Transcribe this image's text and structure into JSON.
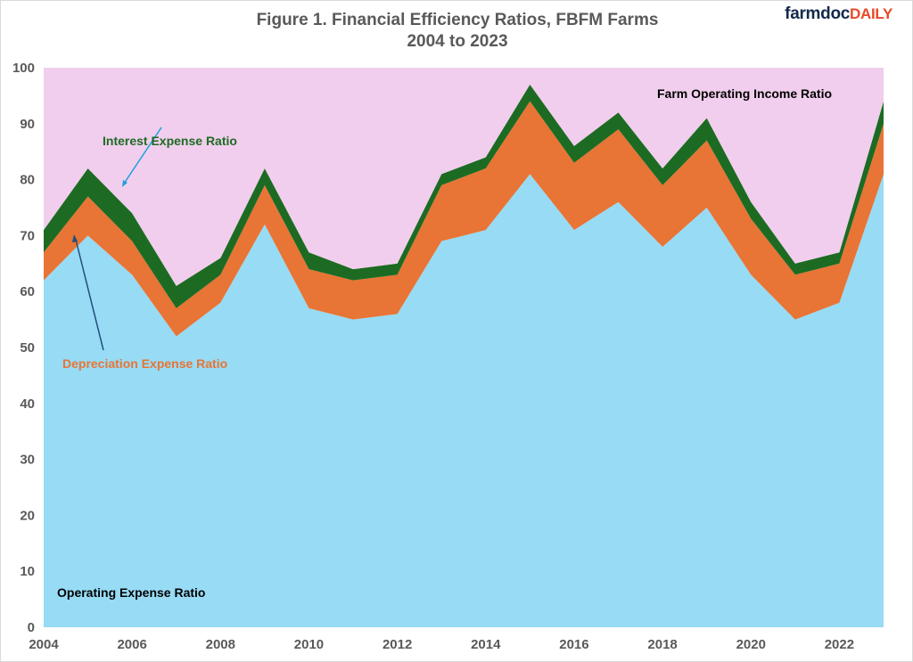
{
  "logo": {
    "text_main": "farmdoc",
    "text_accent": "DAILY"
  },
  "chart_data": {
    "type": "area",
    "stacked": true,
    "title": "Figure 1. Financial Efficiency Ratios, FBFM Farms",
    "subtitle": "2004 to 2023",
    "xlabel": "",
    "ylabel": "",
    "ylim": [
      0,
      100
    ],
    "xlim": [
      2004,
      2023
    ],
    "x_ticks": [
      "2004",
      "2006",
      "2008",
      "2010",
      "2012",
      "2014",
      "2016",
      "2018",
      "2020",
      "2022"
    ],
    "y_ticks": [
      "0",
      "10",
      "20",
      "30",
      "40",
      "50",
      "60",
      "70",
      "80",
      "90",
      "100"
    ],
    "grid": false,
    "x": [
      2004,
      2005,
      2006,
      2007,
      2008,
      2009,
      2010,
      2011,
      2012,
      2013,
      2014,
      2015,
      2016,
      2017,
      2018,
      2019,
      2020,
      2021,
      2022,
      2023
    ],
    "series": [
      {
        "name": "Operating Expense Ratio",
        "color": "#97dbf5",
        "values": [
          62,
          70,
          63,
          52,
          58,
          72,
          57,
          55,
          56,
          69,
          71,
          81,
          71,
          76,
          68,
          75,
          63,
          55,
          58,
          81
        ]
      },
      {
        "name": "Depreciation Expense Ratio",
        "color": "#e87435",
        "values": [
          5,
          7,
          6,
          5,
          5,
          7,
          7,
          7,
          7,
          10,
          11,
          13,
          12,
          13,
          11,
          12,
          10,
          8,
          7,
          9
        ]
      },
      {
        "name": "Interest Expense Ratio",
        "color": "#1d6b23",
        "values": [
          4,
          5,
          5,
          4,
          3,
          3,
          3,
          2,
          2,
          2,
          2,
          3,
          3,
          3,
          3,
          4,
          3,
          2,
          2,
          4
        ]
      },
      {
        "name": "Farm Operating Income Ratio",
        "color": "#f1ceed",
        "values": [
          29,
          18,
          26,
          39,
          34,
          18,
          33,
          36,
          35,
          19,
          16,
          3,
          14,
          8,
          18,
          9,
          24,
          35,
          33,
          6
        ]
      }
    ]
  }
}
